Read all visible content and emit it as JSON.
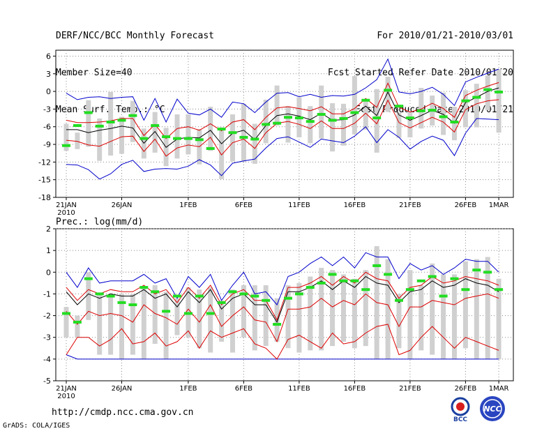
{
  "header": {
    "title": "DERF/NCC/BCC Monthly Forecast",
    "member_size": "Member Size=40",
    "variable": "Mean Surf. Temp.: °C",
    "valid_period": "For 2010/01/21-2010/03/01",
    "start_date": "Fcst Started Refer Date 2010/01/20",
    "produced_date": "Fcst Produced Date 2010/01/21"
  },
  "footer": {
    "url": "http://cmdp.ncc.cma.gov.cn",
    "grads": "GrADS: COLA/IGES",
    "logo_left": "BCC",
    "logo_right": "NCC"
  },
  "colors": {
    "envelope": "#0000cc",
    "spread": "#dd0000",
    "mean": "#000000",
    "box": "#d0d0d0",
    "marker": "#22dd22",
    "grid": "#888888"
  },
  "chart_data": [
    {
      "type": "box",
      "title": "Mean Surf. Temp.: °C",
      "x_labels": [
        "21JAN",
        "26JAN",
        "1FEB",
        "6FEB",
        "11FEB",
        "16FEB",
        "21FEB",
        "26FEB",
        "1MAR"
      ],
      "x_label_index": [
        0,
        5,
        11,
        16,
        21,
        26,
        31,
        36,
        39
      ],
      "year_label": "2010",
      "ylim": [
        -18,
        7
      ],
      "yticks": [
        -18,
        -15,
        -12,
        -9,
        -6,
        -3,
        0,
        3,
        6
      ],
      "grid": true,
      "series": {
        "max": [
          -0.3,
          -1.4,
          -1.0,
          -0.9,
          -1.2,
          -1.0,
          -0.9,
          -4.9,
          -1.2,
          -5.2,
          -1.3,
          -3.7,
          -4.0,
          -3.0,
          -4.4,
          -1.8,
          -2.1,
          -3.6,
          -1.8,
          -0.3,
          -0.2,
          -0.9,
          -0.5,
          -1.0,
          -0.7,
          -0.8,
          -0.5,
          0.6,
          2.0,
          5.5,
          -0.1,
          -0.4,
          0.0,
          0.7,
          -0.5,
          -2.4,
          1.6,
          2.4,
          3.1,
          3.8
        ],
        "p75": [
          -4.9,
          -5.3,
          -5.3,
          -5.2,
          -5.0,
          -4.6,
          -4.6,
          -7.5,
          -5.6,
          -8.0,
          -6.3,
          -6.0,
          -6.6,
          -5.5,
          -6.7,
          -5.2,
          -4.8,
          -6.5,
          -4.4,
          -2.8,
          -2.6,
          -2.9,
          -3.3,
          -2.6,
          -3.8,
          -3.8,
          -2.9,
          -1.2,
          -2.7,
          1.4,
          -2.7,
          -3.5,
          -3.0,
          -2.0,
          -2.9,
          -4.4,
          -0.7,
          0.2,
          0.9,
          1.5
        ],
        "mean": [
          -6.5,
          -6.5,
          -7.0,
          -6.6,
          -6.3,
          -5.9,
          -6.2,
          -8.8,
          -6.8,
          -9.5,
          -8.1,
          -7.8,
          -7.9,
          -6.6,
          -8.9,
          -7.1,
          -6.6,
          -8.2,
          -5.8,
          -4.1,
          -3.8,
          -4.2,
          -4.8,
          -3.7,
          -4.9,
          -4.8,
          -4.0,
          -2.5,
          -4.1,
          -0.1,
          -4.0,
          -4.9,
          -4.1,
          -3.2,
          -3.9,
          -5.4,
          -1.9,
          -1.0,
          0.0,
          0.6
        ],
        "p25": [
          -8.3,
          -8.5,
          -9.1,
          -9.3,
          -8.5,
          -7.7,
          -7.6,
          -10.2,
          -8.1,
          -11.0,
          -9.6,
          -9.1,
          -9.4,
          -7.8,
          -10.8,
          -8.7,
          -8.1,
          -9.7,
          -7.0,
          -5.4,
          -5.1,
          -5.6,
          -6.3,
          -5.0,
          -6.3,
          -6.3,
          -5.4,
          -3.7,
          -5.5,
          -1.5,
          -5.3,
          -6.2,
          -5.3,
          -4.4,
          -5.2,
          -6.9,
          -3.1,
          -2.1,
          -1.6,
          -1.4
        ],
        "min": [
          -12.4,
          -12.5,
          -13.3,
          -14.9,
          -14.0,
          -12.4,
          -11.7,
          -13.6,
          -13.2,
          -13.1,
          -13.2,
          -12.7,
          -11.6,
          -12.5,
          -14.3,
          -12.2,
          -11.8,
          -11.5,
          -9.6,
          -8.0,
          -7.7,
          -8.6,
          -9.5,
          -8.1,
          -8.4,
          -8.7,
          -7.6,
          -6.0,
          -8.7,
          -6.5,
          -7.8,
          -9.8,
          -8.5,
          -7.6,
          -8.3,
          -10.9,
          -7.1,
          -4.6,
          -4.7,
          -4.8
        ],
        "box_top": [
          -5.5,
          -7.0,
          -1.5,
          -4.6,
          -0.1,
          -4.3,
          -1.6,
          -6.3,
          -3.5,
          -6.2,
          -3.9,
          -3.9,
          -6.4,
          -2.6,
          -6.1,
          -3.9,
          -2.1,
          -5.5,
          -1.4,
          1.0,
          -2.5,
          -1.0,
          -2.5,
          1.0,
          -2.0,
          -2.1,
          2.6,
          -1.3,
          0.4,
          2.5,
          -3.6,
          -3.4,
          0.6,
          -0.7,
          -0.2,
          -2.6,
          0.2,
          1.3,
          2.7,
          3.8
        ],
        "box_bottom": [
          -10.1,
          -9.8,
          -9.4,
          -11.8,
          -10.9,
          -10.6,
          -8.6,
          -11.4,
          -10.4,
          -12.7,
          -11.4,
          -10.7,
          -12.4,
          -10.1,
          -14.9,
          -11.9,
          -11.9,
          -12.3,
          -8.8,
          -5.8,
          -8.7,
          -7.8,
          -8.8,
          -8.0,
          -10.2,
          -9.2,
          -7.3,
          -6.5,
          -10.4,
          -3.5,
          -7.9,
          -7.8,
          -6.3,
          -5.8,
          -7.4,
          -8.3,
          -6.1,
          -6.1,
          -3.2,
          -7.0
        ],
        "marker": [
          -9.2,
          -5.8,
          -3.6,
          -5.9,
          -5.2,
          -4.9,
          -4.1,
          -8.0,
          -5.8,
          -7.7,
          -8.0,
          -8.0,
          -8.2,
          -9.7,
          -6.4,
          -7.0,
          -7.8,
          -8.1,
          -5.6,
          -5.4,
          -4.4,
          -4.5,
          -5.1,
          -3.9,
          -4.9,
          -4.6,
          -3.6,
          -1.5,
          -4.5,
          0.2,
          -2.5,
          -4.5,
          -3.3,
          -3.2,
          -4.3,
          -5.2,
          -1.6,
          -1.0,
          0.3,
          -0.1
        ]
      }
    },
    {
      "type": "box",
      "title": "Prec.: log(mm/d)",
      "x_labels": [
        "21JAN",
        "26JAN",
        "1FEB",
        "6FEB",
        "11FEB",
        "16FEB",
        "21FEB",
        "26FEB",
        "1MAR"
      ],
      "x_label_index": [
        0,
        5,
        11,
        16,
        21,
        26,
        31,
        36,
        39
      ],
      "year_label": "2010",
      "ylim": [
        -5,
        2
      ],
      "yticks": [
        -5,
        -4,
        -3,
        -2,
        -1,
        0,
        1,
        2
      ],
      "grid": true,
      "series": {
        "max": [
          0.0,
          -0.7,
          0.2,
          -0.5,
          -0.4,
          -0.4,
          -0.4,
          -0.1,
          -0.5,
          -0.3,
          -1.2,
          -0.2,
          -0.7,
          -0.1,
          -1.3,
          -0.6,
          0.0,
          -1.0,
          -0.9,
          -1.5,
          -0.2,
          0.0,
          0.4,
          0.7,
          0.3,
          0.7,
          0.2,
          0.9,
          0.7,
          0.7,
          -0.3,
          0.4,
          0.1,
          0.3,
          -0.1,
          0.2,
          0.6,
          0.5,
          0.5,
          0.0
        ],
        "p75": [
          -0.7,
          -1.3,
          -0.8,
          -1.0,
          -0.8,
          -0.9,
          -0.9,
          -0.6,
          -1.0,
          -0.8,
          -1.4,
          -0.7,
          -1.2,
          -0.6,
          -1.5,
          -1.0,
          -0.8,
          -1.3,
          -1.3,
          -2.2,
          -0.7,
          -0.7,
          -0.5,
          -0.2,
          -0.6,
          -0.2,
          -0.5,
          0.0,
          -0.3,
          -0.4,
          -1.2,
          -0.7,
          -0.6,
          -0.2,
          -0.5,
          -0.4,
          -0.2,
          -0.3,
          -0.4,
          -0.6
        ],
        "mean": [
          -0.9,
          -1.5,
          -1.0,
          -1.2,
          -1.0,
          -1.1,
          -1.1,
          -0.8,
          -1.2,
          -1.0,
          -1.6,
          -0.9,
          -1.4,
          -0.8,
          -1.7,
          -1.2,
          -1.0,
          -1.5,
          -1.5,
          -2.3,
          -0.9,
          -0.9,
          -0.7,
          -0.4,
          -0.8,
          -0.4,
          -0.7,
          -0.2,
          -0.5,
          -0.6,
          -1.4,
          -0.9,
          -0.8,
          -0.4,
          -0.7,
          -0.6,
          -0.3,
          -0.5,
          -0.6,
          -0.9
        ],
        "p25": [
          -1.8,
          -2.4,
          -1.8,
          -2.0,
          -1.9,
          -2.0,
          -2.3,
          -1.5,
          -1.9,
          -2.1,
          -2.4,
          -1.7,
          -2.3,
          -1.5,
          -2.5,
          -2.0,
          -1.6,
          -2.2,
          -2.3,
          -3.2,
          -1.7,
          -1.7,
          -1.6,
          -1.2,
          -1.6,
          -1.3,
          -1.5,
          -1.0,
          -1.4,
          -1.5,
          -2.5,
          -1.6,
          -1.6,
          -1.3,
          -1.4,
          -1.5,
          -1.2,
          -1.1,
          -1.0,
          -1.2
        ],
        "min": [
          -3.8,
          -4.0,
          -4.0,
          -4.0,
          -4.0,
          -4.0,
          -4.0,
          -4.0,
          -4.0,
          -4.0,
          -4.0,
          -4.0,
          -4.0,
          -4.0,
          -4.0,
          -4.0,
          -4.0,
          -4.0,
          -4.0,
          -4.0,
          -4.0,
          -4.0,
          -4.0,
          -4.0,
          -4.0,
          -4.0,
          -4.0,
          -4.0,
          -4.0,
          -4.0,
          -4.0,
          -4.0,
          -4.0,
          -4.0,
          -4.0,
          -4.0,
          -4.0,
          -4.0,
          -4.0,
          -4.0
        ],
        "min_spread": [
          -3.8,
          -3.0,
          -3.0,
          -3.4,
          -3.1,
          -2.6,
          -3.3,
          -3.2,
          -2.8,
          -3.4,
          -3.2,
          -2.7,
          -3.5,
          -2.7,
          -3.0,
          -2.8,
          -2.6,
          -3.3,
          -3.5,
          -4.0,
          -3.1,
          -2.9,
          -3.2,
          -3.5,
          -2.8,
          -3.3,
          -3.2,
          -2.8,
          -2.5,
          -2.4,
          -3.8,
          -3.6,
          -3.0,
          -2.5,
          -3.0,
          -3.5,
          -3.0,
          -3.2,
          -3.4,
          -3.6
        ],
        "box_top": [
          -1.6,
          -2.0,
          0.0,
          -1.0,
          -1.0,
          -1.0,
          -1.0,
          -0.7,
          -0.6,
          -0.9,
          -1.2,
          -0.7,
          -0.8,
          -0.7,
          -1.3,
          -0.8,
          -0.6,
          -0.6,
          -0.6,
          -1.2,
          -0.6,
          -0.5,
          -0.2,
          0.2,
          0.1,
          -0.1,
          -0.3,
          0.1,
          1.2,
          0.6,
          -1.0,
          0.1,
          -0.6,
          0.4,
          -0.1,
          -0.1,
          0.5,
          0.6,
          0.7,
          -0.3
        ],
        "box_bottom": [
          -3.0,
          -3.0,
          -2.2,
          -3.8,
          -3.8,
          -4.0,
          -3.8,
          -4.0,
          -3.3,
          -4.0,
          -2.9,
          -3.0,
          -3.5,
          -3.7,
          -3.2,
          -3.7,
          -3.0,
          -3.6,
          -3.4,
          -3.2,
          -3.5,
          -3.7,
          -3.6,
          -3.6,
          -3.4,
          -3.2,
          -3.5,
          -3.4,
          -4.0,
          -4.0,
          -3.5,
          -4.0,
          -3.6,
          -3.8,
          -4.0,
          -4.0,
          -3.5,
          -4.0,
          -4.0,
          -4.0
        ],
        "marker": [
          -1.9,
          -2.3,
          -0.3,
          -1.0,
          -1.1,
          -1.4,
          -1.5,
          -0.7,
          -0.9,
          -1.8,
          -1.1,
          -1.9,
          -1.1,
          -1.9,
          -1.4,
          -0.9,
          -1.0,
          -1.1,
          -1.3,
          -2.4,
          -1.2,
          -1.0,
          -0.7,
          -0.5,
          -0.1,
          -0.4,
          -0.4,
          -0.8,
          0.3,
          -0.1,
          -1.3,
          -0.8,
          -0.4,
          -0.2,
          -1.1,
          -0.3,
          -0.8,
          0.1,
          0.0,
          -0.8
        ]
      }
    }
  ]
}
